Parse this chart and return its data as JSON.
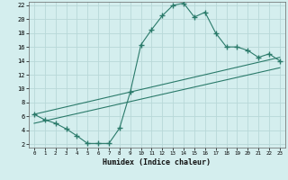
{
  "xlabel": "Humidex (Indice chaleur)",
  "bg_color": "#d4eeee",
  "grid_color": "#b8d8d8",
  "line_color": "#2a7a6a",
  "xlim": [
    -0.5,
    23.5
  ],
  "ylim": [
    1.5,
    22.5
  ],
  "xticks": [
    0,
    1,
    2,
    3,
    4,
    5,
    6,
    7,
    8,
    9,
    10,
    11,
    12,
    13,
    14,
    15,
    16,
    17,
    18,
    19,
    20,
    21,
    22,
    23
  ],
  "yticks": [
    2,
    4,
    6,
    8,
    10,
    12,
    14,
    16,
    18,
    20,
    22
  ],
  "line1_x": [
    0,
    1,
    2,
    3,
    4,
    5,
    6,
    7,
    8,
    9,
    10,
    11,
    12,
    13,
    14,
    15,
    16,
    17,
    18,
    19,
    20,
    21,
    22,
    23
  ],
  "line1_y": [
    6.3,
    5.5,
    5.0,
    4.2,
    3.2,
    2.1,
    2.1,
    2.1,
    4.3,
    9.5,
    16.3,
    18.5,
    20.5,
    22.0,
    22.3,
    20.3,
    21.0,
    18.0,
    16.0,
    16.0,
    15.5,
    14.5,
    15.0,
    14.0
  ],
  "line2_x": [
    0,
    23
  ],
  "line2_y": [
    6.3,
    14.5
  ],
  "line3_x": [
    0,
    23
  ],
  "line3_y": [
    5.0,
    13.0
  ]
}
